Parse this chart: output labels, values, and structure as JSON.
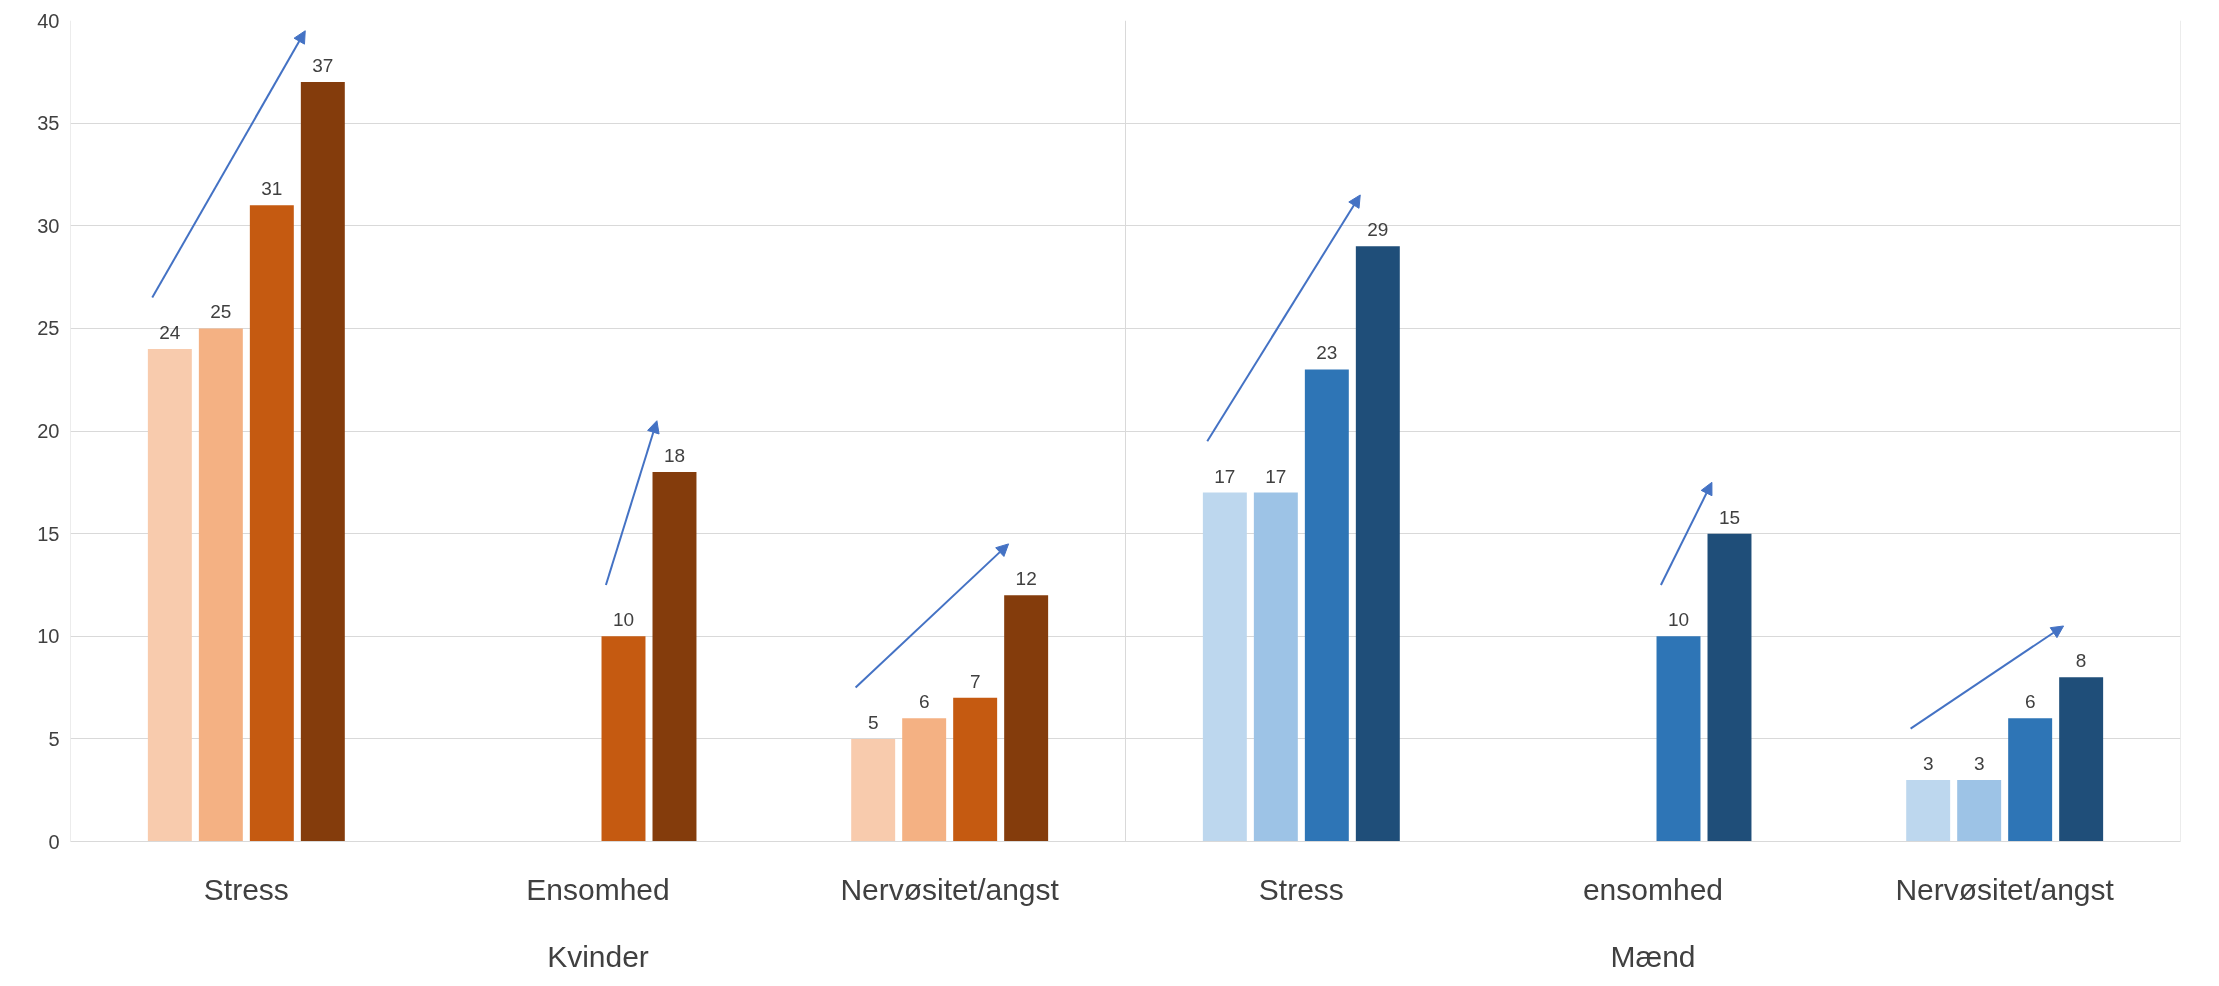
{
  "chart_data": {
    "type": "bar",
    "categories": [
      "Stress",
      "Ensomhed",
      "Nervøsitet/angst",
      "Stress",
      "ensomhed",
      "Nervøsitet/angst"
    ],
    "series": [
      {
        "colors": [
          "#f8cbad",
          "#f8cbad",
          "#f8cbad",
          "#bdd7ee",
          "#bdd7ee",
          "#bdd7ee"
        ],
        "values": [
          24,
          null,
          5,
          17,
          null,
          3
        ]
      },
      {
        "colors": [
          "#f4b183",
          "#f4b183",
          "#f4b183",
          "#9dc3e6",
          "#9dc3e6",
          "#9dc3e6"
        ],
        "values": [
          25,
          null,
          6,
          17,
          null,
          3
        ]
      },
      {
        "colors": [
          "#c55a11",
          "#c55a11",
          "#c55a11",
          "#2e75b6",
          "#2e75b6",
          "#2e75b6"
        ],
        "values": [
          31,
          10,
          7,
          23,
          10,
          6
        ]
      },
      {
        "colors": [
          "#843c0c",
          "#843c0c",
          "#843c0c",
          "#1f4e79",
          "#1f4e79",
          "#1f4e79"
        ],
        "values": [
          37,
          18,
          12,
          29,
          15,
          8
        ]
      }
    ],
    "annotations": [
      "Kvinder",
      "Mænd"
    ],
    "ylim": [
      0,
      40
    ],
    "yticks": [
      0,
      5,
      10,
      15,
      20,
      25,
      30,
      35,
      40
    ],
    "grid": "y",
    "data_labels": true
  }
}
